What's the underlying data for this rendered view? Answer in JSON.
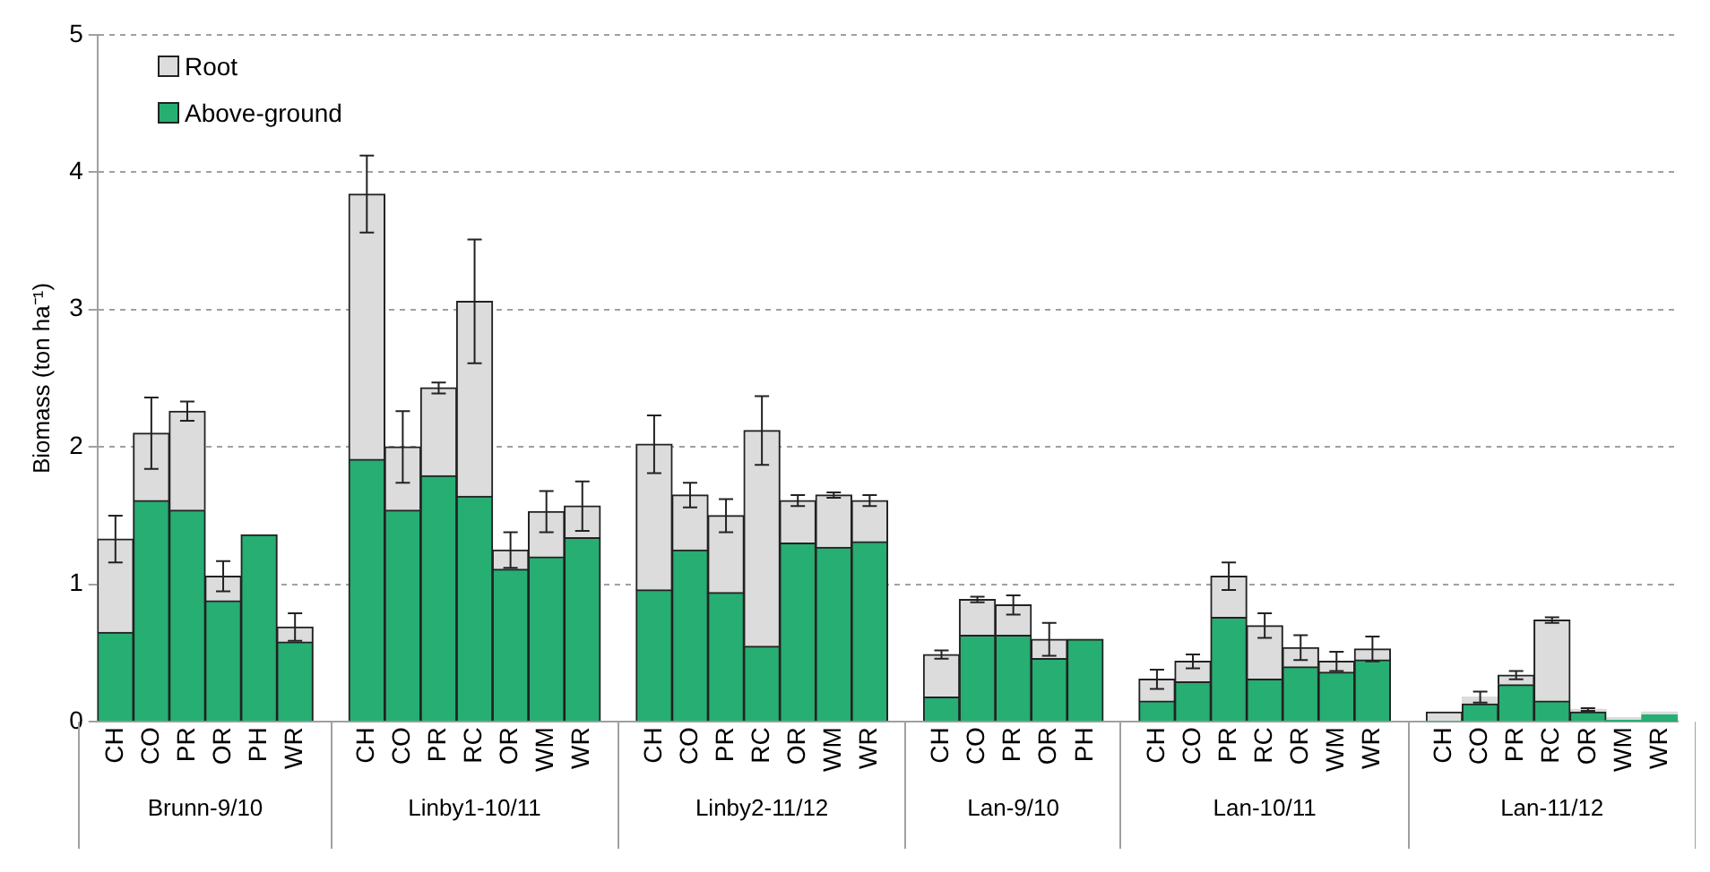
{
  "chart_data": {
    "type": "bar",
    "ylabel": "Biomass (ton ha⁻¹)",
    "stacked": true,
    "grid": "y",
    "legend": "top left",
    "categories": [
      "CH",
      "CO",
      "PR",
      "OR",
      "PH",
      "WR",
      null,
      "CH",
      "CO",
      "PR",
      "RC",
      "OR",
      "WM",
      "WR",
      null,
      "CH",
      "CO",
      "PR",
      "RC",
      "OR",
      "WM",
      "WR",
      null,
      "CH",
      "CO",
      "PR",
      "OR",
      "PH",
      null,
      "CH",
      "CO",
      "PR",
      "RC",
      "OR",
      "WM",
      "WR",
      null,
      "CH",
      "CO",
      "PR",
      "RC",
      "OR",
      "WM",
      "WR"
    ],
    "annotations": [
      "Brunn-9/10",
      "Linby1-10/11",
      "Linby2-11/12",
      "Lan-9/10",
      "Lan-10/11",
      "Lan-11/12"
    ],
    "ylim": [
      0,
      5
    ],
    "yticks": [
      0,
      1,
      2,
      3,
      4,
      5
    ],
    "series": [
      {
        "name": "Above-ground",
        "color": "#27ae72",
        "values": [
          0.65,
          1.61,
          1.54,
          0.88,
          1.36,
          0.58,
          null,
          1.91,
          1.54,
          1.79,
          1.64,
          1.11,
          1.2,
          1.34,
          null,
          0.96,
          1.25,
          0.94,
          0.55,
          1.3,
          1.27,
          1.31,
          null,
          0.18,
          0.63,
          0.63,
          0.46,
          0.6,
          null,
          0.15,
          0.29,
          0.76,
          0.31,
          0.4,
          0.36,
          0.45,
          null,
          0,
          0.13,
          0.27,
          0.15,
          0.07,
          0.01,
          0.05
        ]
      },
      {
        "name": "Root",
        "color": "#dcdcdc",
        "values": [
          0.68,
          0.49,
          0.72,
          0.18,
          0,
          0.11,
          null,
          1.93,
          0.46,
          0.64,
          1.42,
          0.14,
          0.33,
          0.23,
          null,
          1.06,
          0.4,
          0.56,
          1.57,
          0.31,
          0.38,
          0.3,
          null,
          0.31,
          0.26,
          0.22,
          0.14,
          0,
          null,
          0.16,
          0.15,
          0.3,
          0.39,
          0.14,
          0.08,
          0.08,
          null,
          0.07,
          0.05,
          0.07,
          0.59,
          0.02,
          0.02,
          0.02
        ],
        "errors": [
          0.17,
          0.26,
          0.07,
          0.11,
          null,
          0.1,
          null,
          0.28,
          0.26,
          0.04,
          0.45,
          0.13,
          0.15,
          0.18,
          null,
          0.21,
          0.09,
          0.12,
          0.25,
          0.04,
          0.02,
          0.04,
          null,
          0.03,
          0.02,
          0.07,
          0.12,
          null,
          null,
          0.07,
          0.05,
          0.1,
          0.09,
          0.09,
          0.07,
          0.09,
          null,
          null,
          0.04,
          0.03,
          0.02,
          0.01,
          null,
          null
        ]
      }
    ]
  }
}
